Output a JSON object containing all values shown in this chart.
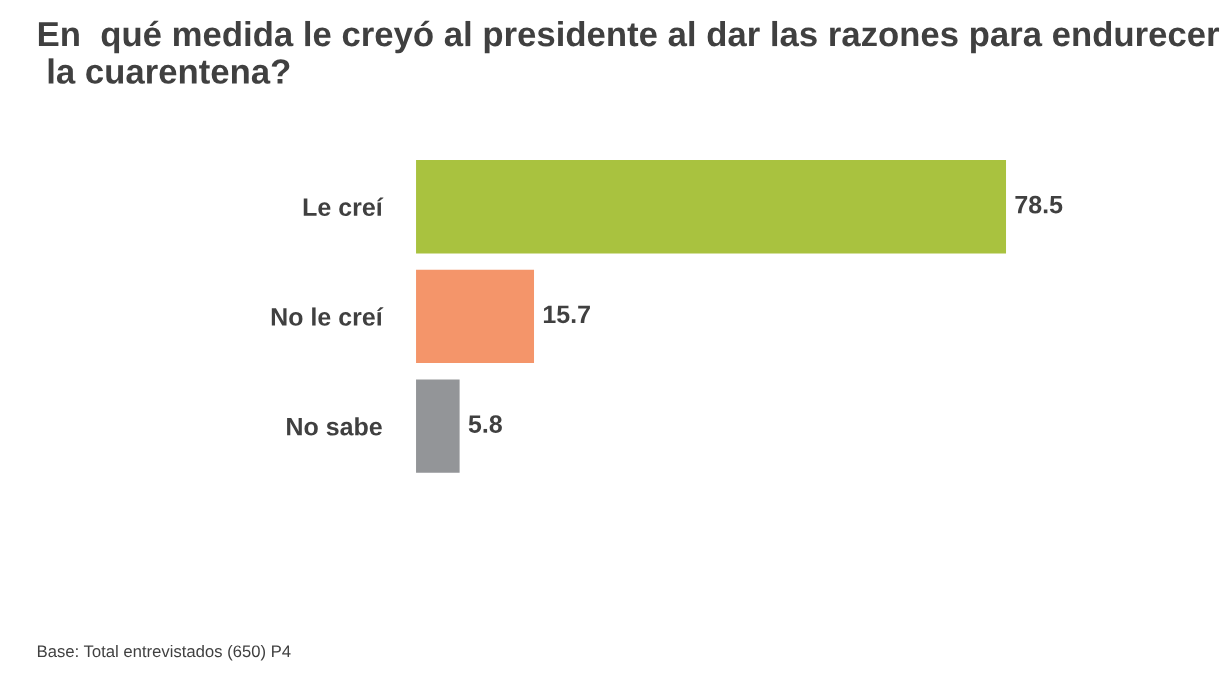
{
  "chart_data": {
    "type": "bar",
    "orientation": "horizontal",
    "title": "En  qué medida le creyó al presidente al dar las razones para endurecer  la cuarentena?",
    "categories": [
      "Le creí",
      "No le creí",
      "No sabe"
    ],
    "values": [
      78.5,
      15.7,
      5.8
    ],
    "colors": [
      "#a9c23f",
      "#f4956a",
      "#939598"
    ],
    "data_labels": true,
    "annotations": [
      "Base: Total entrevistados (650) P4"
    ]
  }
}
